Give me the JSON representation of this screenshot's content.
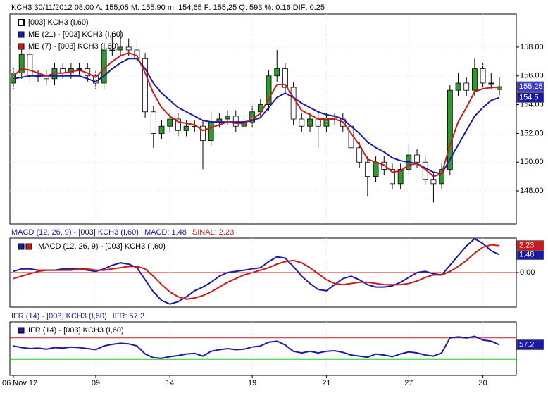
{
  "chart_data": [
    {
      "type": "candlestick",
      "title": "KCH3   30/11/2012 08:00   A: 155,05   M: 155,90   m: 154,65   F: 155,25   Q: 593   %: 0.16  DIF: 0.25",
      "name": "[003] KCH3 (I,60)",
      "up_color": "#2e9a2e",
      "down_color": "#ffffff",
      "close_tag": "155.25",
      "close_tag_color": "#3c3cc8",
      "open": [
        155.5,
        156.2,
        157.5,
        156.0,
        156.0,
        155.8,
        156.5,
        156.2,
        156.5,
        156.5,
        156.0,
        155.5,
        157.8,
        157.8,
        158.0,
        157.8,
        157.2,
        153.5,
        152.0,
        152.5,
        153.0,
        152.2,
        152.5,
        152.5,
        151.5,
        152.8,
        153.0,
        153.2,
        152.5,
        152.8,
        153.5,
        154.0,
        156.0,
        156.5,
        155.2,
        153.0,
        152.5,
        153.0,
        152.5,
        153.0,
        153.0,
        152.5,
        151.0,
        150.0,
        149.0,
        150.0,
        149.5,
        148.5,
        149.5,
        150.5,
        150.0,
        148.8,
        148.5,
        149.5,
        155.0,
        155.5,
        155.0,
        156.5,
        155.5,
        155.05
      ],
      "high": [
        156.6,
        157.9,
        157.9,
        156.4,
        156.4,
        156.9,
        156.9,
        156.9,
        156.9,
        156.9,
        156.4,
        158.2,
        159.0,
        159.2,
        158.6,
        158.2,
        157.6,
        153.9,
        152.9,
        153.4,
        153.4,
        152.9,
        152.9,
        152.9,
        153.5,
        153.4,
        153.6,
        153.6,
        153.2,
        153.9,
        154.4,
        156.4,
        157.8,
        156.9,
        155.6,
        153.4,
        153.4,
        153.4,
        153.4,
        153.4,
        153.4,
        152.9,
        151.4,
        150.4,
        150.4,
        150.4,
        149.9,
        149.9,
        151.2,
        150.9,
        150.4,
        149.2,
        149.9,
        155.4,
        156.2,
        155.9,
        157.2,
        156.9,
        156.2,
        155.9
      ],
      "low": [
        155.1,
        155.8,
        155.6,
        155.6,
        155.4,
        155.4,
        155.8,
        155.8,
        156.1,
        155.6,
        155.1,
        155.1,
        157.4,
        157.4,
        157.4,
        156.8,
        153.1,
        151.0,
        151.6,
        152.1,
        151.8,
        151.8,
        152.1,
        149.5,
        151.1,
        152.4,
        152.6,
        152.1,
        152.1,
        152.4,
        153.1,
        153.6,
        155.6,
        154.8,
        152.6,
        152.1,
        152.1,
        151.0,
        152.1,
        152.6,
        152.1,
        150.6,
        149.6,
        147.6,
        148.6,
        149.1,
        148.1,
        148.1,
        149.1,
        149.6,
        148.4,
        147.2,
        148.1,
        149.1,
        154.6,
        154.6,
        154.6,
        155.1,
        155.1,
        154.65
      ],
      "close": [
        156.2,
        157.5,
        156.0,
        156.0,
        155.8,
        156.5,
        156.2,
        156.5,
        156.5,
        156.0,
        155.5,
        157.8,
        157.8,
        158.0,
        157.8,
        157.2,
        153.5,
        152.0,
        152.5,
        153.0,
        152.2,
        152.5,
        152.5,
        151.5,
        152.8,
        153.0,
        153.2,
        152.5,
        152.8,
        153.5,
        154.0,
        156.0,
        156.5,
        155.2,
        153.0,
        152.5,
        153.0,
        152.5,
        153.0,
        153.0,
        152.5,
        151.0,
        150.0,
        149.0,
        150.0,
        149.5,
        148.5,
        149.5,
        150.5,
        150.0,
        148.8,
        148.5,
        149.5,
        155.0,
        155.5,
        155.0,
        156.5,
        155.5,
        155.5,
        155.25
      ],
      "series": [
        {
          "name": "ME (21)  - [003] KCH3 (I,60)",
          "color": "#1a1aa6",
          "tag": "154.5",
          "values": [
            155.8,
            155.9,
            156.0,
            156.0,
            156.0,
            156.0,
            156.0,
            156.0,
            156.0,
            155.8,
            155.6,
            156.0,
            156.5,
            156.9,
            157.2,
            157.2,
            156.5,
            155.5,
            154.8,
            154.3,
            153.8,
            153.5,
            153.2,
            152.9,
            152.8,
            152.8,
            152.8,
            152.8,
            152.8,
            152.9,
            153.1,
            153.8,
            154.5,
            154.8,
            154.5,
            154.1,
            153.8,
            153.5,
            153.3,
            153.2,
            153.0,
            152.5,
            152.0,
            151.4,
            151.0,
            150.7,
            150.3,
            150.1,
            150.0,
            149.9,
            149.6,
            149.3,
            149.2,
            150.2,
            151.2,
            152.2,
            153.2,
            153.8,
            154.3,
            154.5
          ]
        },
        {
          "name": "ME (7)  - [003] KCH3 (I,60)",
          "color": "#cc1a1a",
          "values": [
            156.0,
            156.5,
            156.4,
            156.2,
            156.0,
            156.2,
            156.2,
            156.3,
            156.4,
            156.2,
            155.9,
            156.5,
            157.0,
            157.4,
            157.6,
            157.4,
            156.2,
            154.8,
            153.8,
            153.2,
            152.8,
            152.7,
            152.6,
            152.2,
            152.4,
            152.6,
            152.8,
            152.7,
            152.7,
            153.0,
            153.4,
            154.4,
            155.4,
            155.4,
            154.5,
            153.6,
            153.3,
            153.0,
            153.0,
            153.0,
            152.8,
            152.0,
            151.2,
            150.2,
            150.0,
            149.8,
            149.3,
            149.4,
            149.8,
            149.9,
            149.5,
            149.0,
            149.2,
            151.2,
            152.8,
            153.8,
            154.9,
            155.1,
            155.2,
            155.2
          ]
        }
      ],
      "ylim": [
        145.7,
        160.3
      ],
      "yticks": [
        {
          "value": 148,
          "label": "148.00"
        },
        {
          "value": 150,
          "label": "150.00"
        },
        {
          "value": 152,
          "label": "152.00"
        },
        {
          "value": 154,
          "label": "154.00"
        },
        {
          "value": 156,
          "label": "156.00"
        },
        {
          "value": 158,
          "label": "158.00"
        }
      ]
    },
    {
      "type": "line",
      "title": "MACD (12, 26, 9)  - [003] KCH3 (I,60)",
      "legend": "MACD (12, 26, 9)  - [003] KCH3 (I,60)",
      "series": [
        {
          "header": "MACD: 1,48",
          "color": "#1a1aa6",
          "tag": "1.48",
          "values": [
            0.1,
            0.3,
            0.3,
            0.2,
            0.2,
            0.2,
            0.3,
            0.3,
            0.3,
            0.2,
            0.1,
            0.3,
            0.6,
            0.8,
            0.7,
            0.4,
            -0.6,
            -1.6,
            -2.3,
            -2.6,
            -2.4,
            -2.0,
            -1.5,
            -1.2,
            -0.8,
            -0.3,
            0.0,
            0.1,
            0.2,
            0.3,
            0.4,
            0.9,
            1.3,
            1.2,
            0.5,
            -0.3,
            -0.9,
            -1.4,
            -1.5,
            -1.0,
            -0.5,
            -0.3,
            -0.6,
            -1.0,
            -1.2,
            -1.2,
            -1.1,
            -0.8,
            -0.4,
            0.0,
            0.1,
            -0.1,
            -0.2,
            0.6,
            1.4,
            2.2,
            2.8,
            2.4,
            1.8,
            1.48
          ]
        },
        {
          "header": "SINAL: 2,23",
          "color": "#cc1a1a",
          "tag": "2.23",
          "values": [
            -0.5,
            -0.3,
            -0.1,
            0.1,
            0.2,
            0.2,
            0.2,
            0.2,
            0.3,
            0.3,
            0.2,
            0.2,
            0.3,
            0.4,
            0.5,
            0.5,
            0.3,
            -0.3,
            -1.0,
            -1.6,
            -2.0,
            -2.2,
            -2.1,
            -1.9,
            -1.6,
            -1.2,
            -0.8,
            -0.5,
            -0.2,
            0.0,
            0.2,
            0.4,
            0.7,
            0.9,
            1.0,
            0.8,
            0.4,
            -0.1,
            -0.6,
            -0.9,
            -1.0,
            -0.9,
            -0.8,
            -0.8,
            -0.9,
            -1.0,
            -1.0,
            -1.0,
            -0.9,
            -0.7,
            -0.4,
            -0.2,
            -0.2,
            0.1,
            0.5,
            1.0,
            1.6,
            2.1,
            2.3,
            2.23
          ]
        }
      ],
      "levels": [
        {
          "value": 0,
          "color": "#cc1a1a"
        }
      ],
      "ylim": [
        -2.85,
        2.85
      ],
      "yticks": [
        {
          "value": 0,
          "label": "0.00"
        }
      ]
    },
    {
      "type": "line",
      "title": "IFR (14)  - [003] KCH3 (I,60)",
      "categories": [
        "06 Nov 12",
        null,
        null,
        null,
        null,
        null,
        null,
        null,
        null,
        null,
        "09",
        null,
        null,
        null,
        null,
        null,
        null,
        null,
        null,
        "14",
        null,
        null,
        null,
        null,
        null,
        null,
        null,
        null,
        null,
        "19",
        null,
        null,
        null,
        null,
        null,
        null,
        null,
        null,
        "21",
        null,
        null,
        null,
        null,
        null,
        null,
        null,
        null,
        null,
        "27",
        null,
        null,
        null,
        null,
        null,
        null,
        null,
        null,
        "30",
        null,
        null
      ],
      "series": [
        {
          "name": "IFR (14)  - [003] KCH3 (I,60)",
          "header": "IFR: 57,2",
          "color": "#1a1aa6",
          "tag": "57.2",
          "values": [
            55,
            52,
            50,
            51,
            49,
            52,
            51,
            53,
            52,
            50,
            48,
            55,
            58,
            60,
            59,
            55,
            40,
            33,
            32,
            35,
            37,
            40,
            41,
            36,
            45,
            48,
            50,
            48,
            49,
            53,
            55,
            62,
            64,
            57,
            45,
            42,
            45,
            42,
            45,
            46,
            43,
            38,
            36,
            34,
            40,
            38,
            35,
            40,
            44,
            42,
            38,
            36,
            42,
            70,
            72,
            70,
            73,
            66,
            64,
            57.2
          ]
        }
      ],
      "levels": [
        {
          "value": 70,
          "color": "#cc1a1a"
        },
        {
          "value": 30,
          "color": "#22cc22"
        }
      ],
      "ylim": [
        0,
        100
      ]
    }
  ]
}
